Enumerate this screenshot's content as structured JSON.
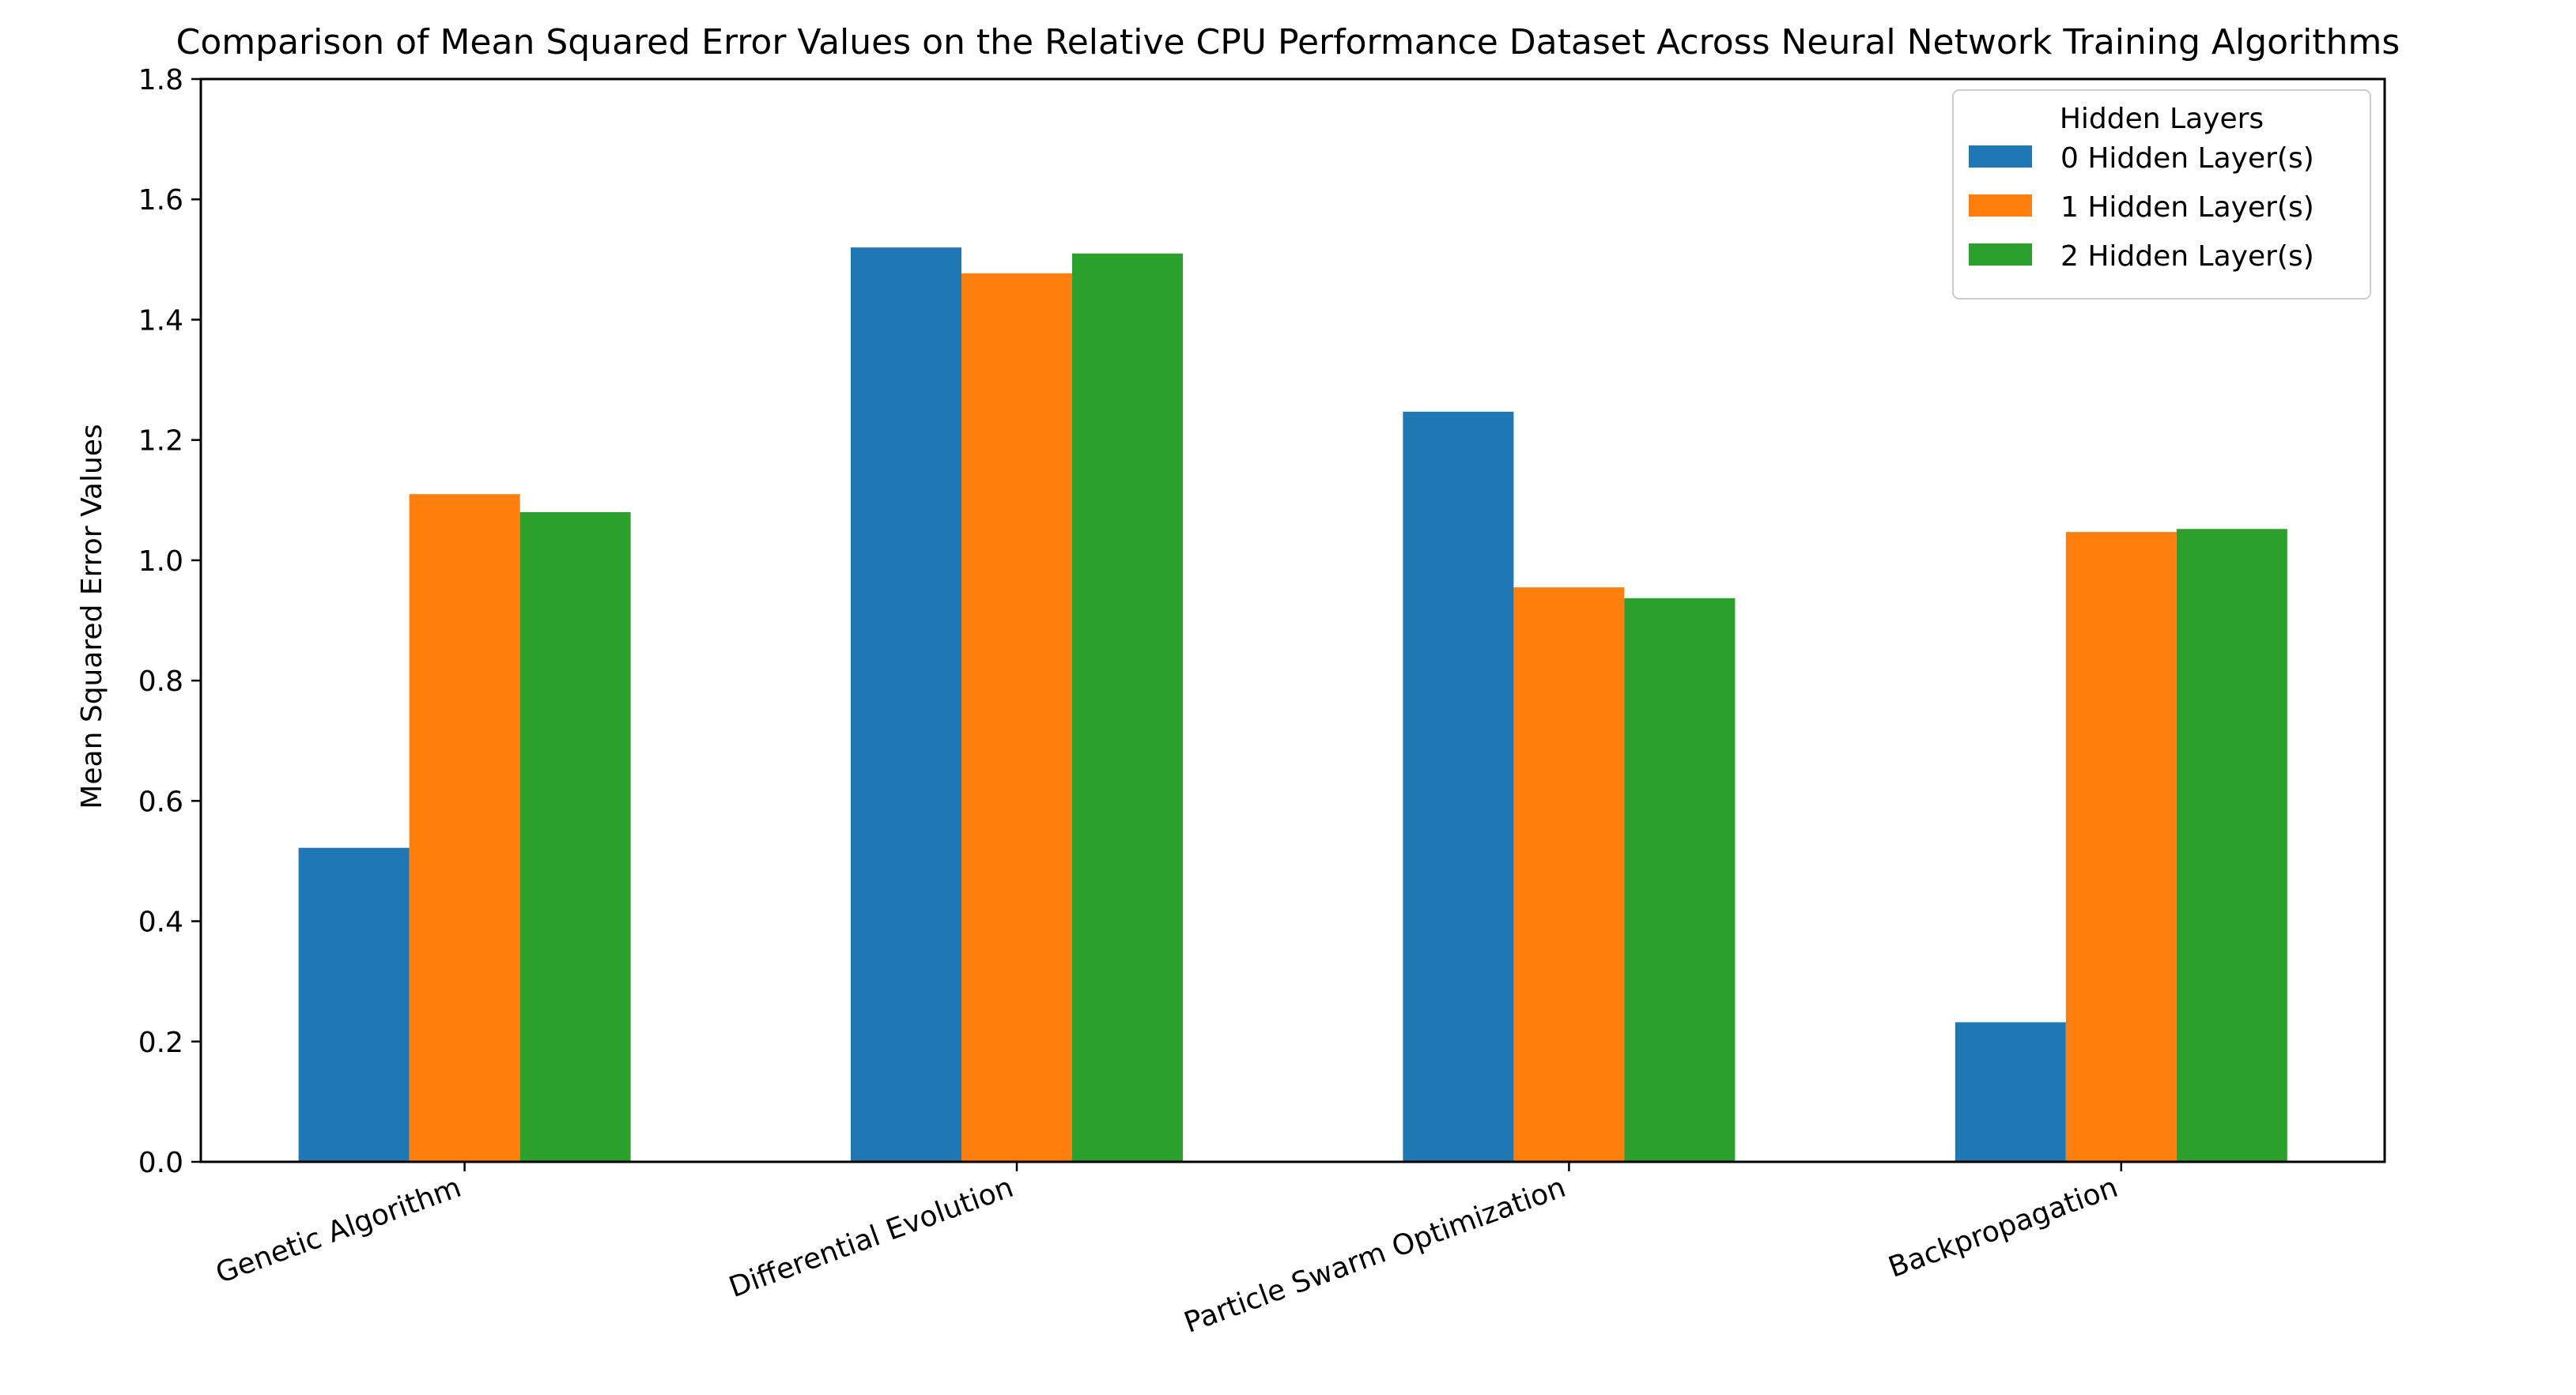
{
  "chart_data": {
    "type": "bar",
    "title": "Comparison of Mean Squared Error Values on the Relative CPU Performance Dataset Across Neural Network Training Algorithms",
    "xlabel": "",
    "ylabel": "Mean Squared Error Values",
    "ylim": [
      0,
      1.8
    ],
    "yticks": [
      "0.0",
      "0.2",
      "0.4",
      "0.6",
      "0.8",
      "1.0",
      "1.2",
      "1.4",
      "1.6",
      "1.8"
    ],
    "categories": [
      "Genetic Algorithm",
      "Differential Evolution",
      "Particle Swarm Optimization",
      "Backpropagation"
    ],
    "series": [
      {
        "name": "0 Hidden Layer(s)",
        "color": "#1f77b4",
        "values": [
          0.522,
          1.52,
          1.247,
          0.232
        ]
      },
      {
        "name": "1 Hidden Layer(s)",
        "color": "#ff7f0e",
        "values": [
          1.11,
          1.477,
          0.955,
          1.047
        ]
      },
      {
        "name": "2 Hidden Layer(s)",
        "color": "#2ca02c",
        "values": [
          1.08,
          1.51,
          0.937,
          1.052
        ]
      }
    ],
    "legend": {
      "title": "Hidden Layers",
      "position": "top-right"
    },
    "grid": false
  }
}
